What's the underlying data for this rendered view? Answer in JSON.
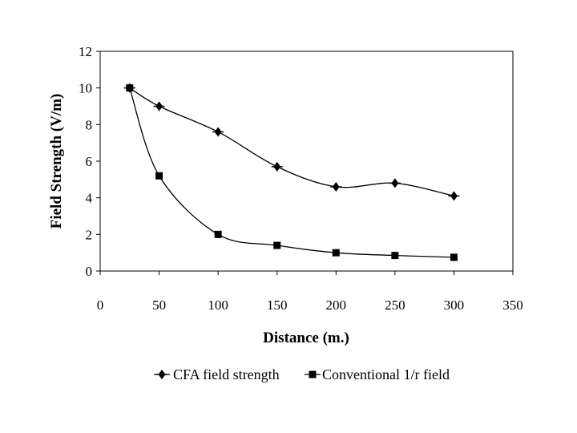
{
  "chart_data": {
    "type": "scatter",
    "title": "",
    "xlabel": "Distance (m.)",
    "ylabel": "Field Strength (V/m)",
    "xlim": [
      0,
      350
    ],
    "ylim": [
      0,
      12
    ],
    "xticks": [
      0,
      50,
      100,
      150,
      200,
      250,
      300,
      350
    ],
    "yticks": [
      0,
      2,
      4,
      6,
      8,
      10,
      12
    ],
    "grid": false,
    "smoothed_lines": true,
    "legend": "bottom",
    "series": [
      {
        "name": "CFA field strength",
        "marker": "diamond",
        "color": "#000000",
        "x": [
          25,
          50,
          100,
          150,
          200,
          250,
          300
        ],
        "y": [
          10.0,
          9.0,
          7.6,
          5.7,
          4.6,
          4.8,
          4.1
        ]
      },
      {
        "name": "Conventional 1/r field",
        "marker": "square",
        "color": "#000000",
        "x": [
          25,
          50,
          100,
          150,
          200,
          250,
          300
        ],
        "y": [
          10.0,
          5.2,
          2.0,
          1.4,
          1.0,
          0.85,
          0.75
        ]
      }
    ]
  }
}
